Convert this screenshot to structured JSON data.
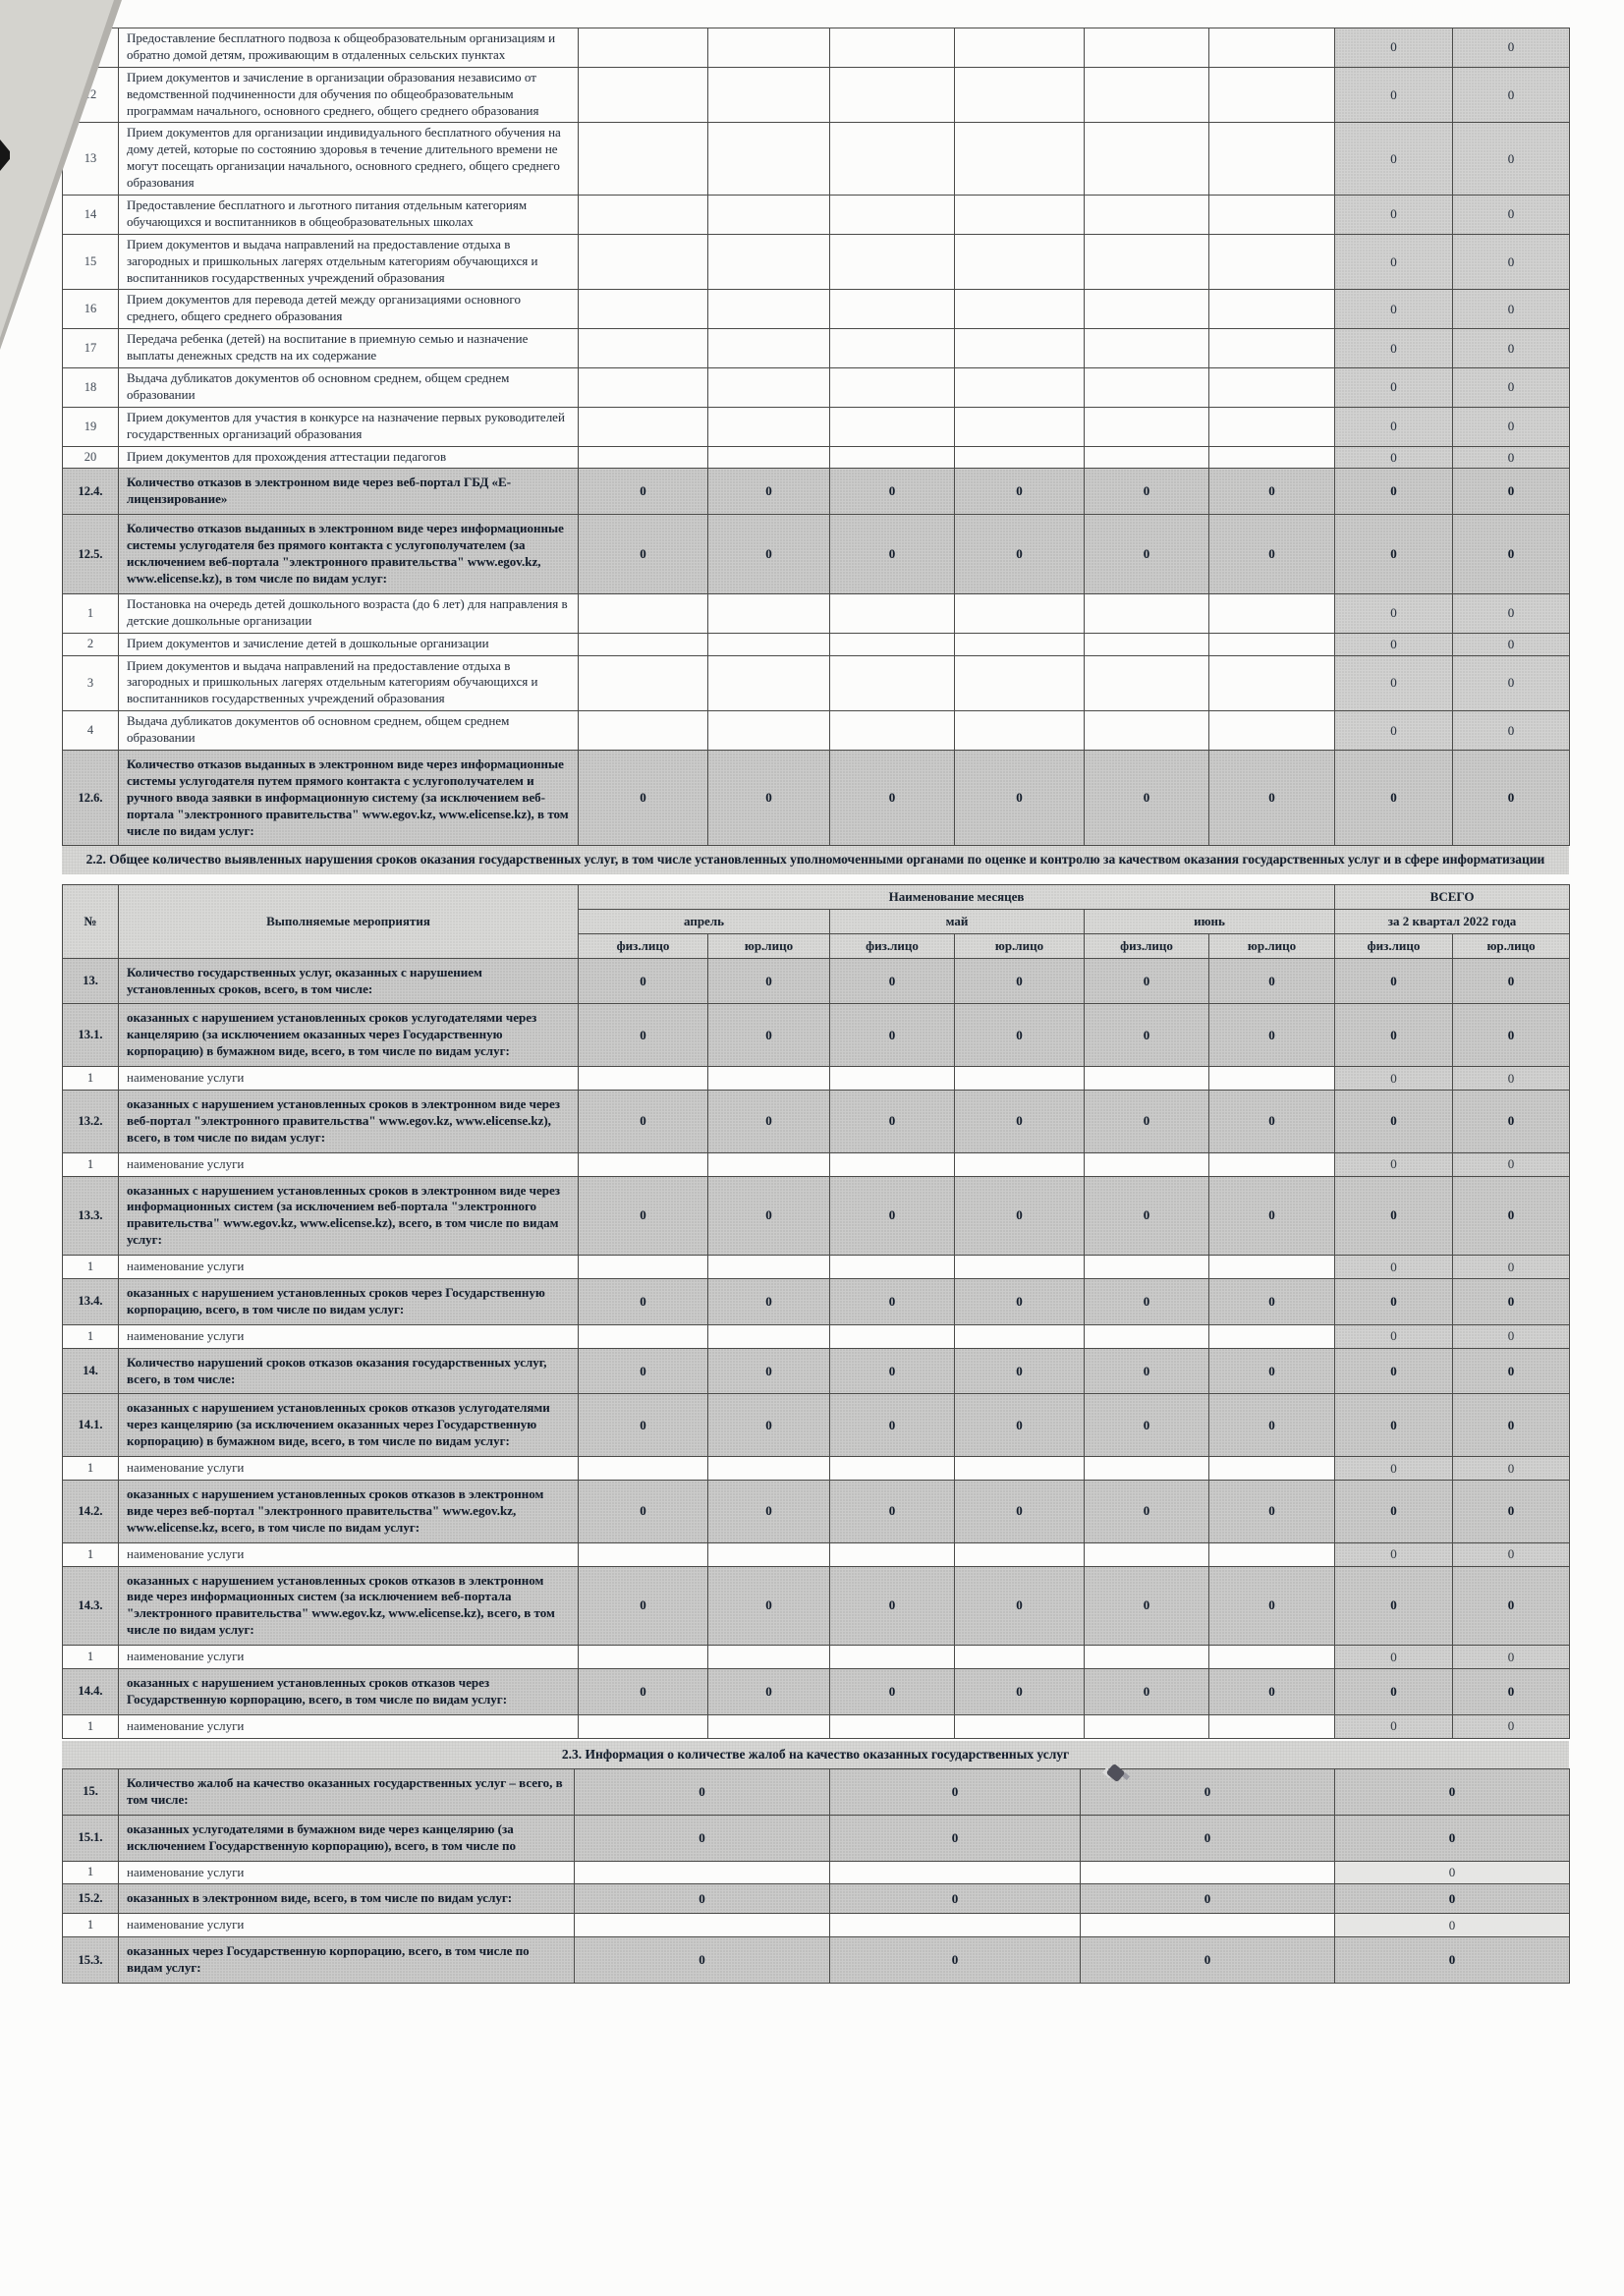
{
  "colors": {
    "shade_dark": "#cbcbca",
    "shade_light": "#e6e6e4",
    "paper": "#fcfcfb"
  },
  "document": {
    "section_2_2_title": "2.2. Общее количество выявленных нарушения сроков оказания государственных услуг, в том числе установленных уполномоченными органами по оценке и контролю за качеством оказания государственных услуг и в сфере информатизации",
    "section_2_3_title": "2.3. Информация о количестве жалоб на качество оказанных государственных услуг"
  },
  "services_table": {
    "rows": [
      {
        "num": "",
        "type": "normal",
        "text": "Предоставление бесплатного подвоза к общеобразовательным организациям и обратно домой детям, проживающим в отдаленных сельских пунктах",
        "values": [
          "",
          "",
          "",
          "",
          "",
          "",
          "0",
          "0"
        ]
      },
      {
        "num": "12",
        "type": "normal",
        "text": "Прием документов и зачисление в организации образования независимо от ведомственной подчиненности для обучения по общеобразовательным программам начального, основного среднего, общего среднего образования",
        "values": [
          "",
          "",
          "",
          "",
          "",
          "",
          "0",
          "0"
        ]
      },
      {
        "num": "13",
        "type": "normal",
        "text": "Прием документов для организации индивидуального бесплатного обучения на дому детей, которые по состоянию здоровья в течение длительного времени не могут посещать организации начального, основного среднего, общего среднего образования",
        "values": [
          "",
          "",
          "",
          "",
          "",
          "",
          "0",
          "0"
        ]
      },
      {
        "num": "14",
        "type": "normal",
        "text": "Предоставление бесплатного и льготного питания отдельным категориям обучающихся и воспитанников в общеобразовательных школах",
        "values": [
          "",
          "",
          "",
          "",
          "",
          "",
          "0",
          "0"
        ]
      },
      {
        "num": "15",
        "type": "normal",
        "text": "Прием документов и выдача направлений на  предоставление отдыха в загородных и пришкольных лагерях отдельным категориям обучающихся и воспитанников государственных учреждений образования",
        "values": [
          "",
          "",
          "",
          "",
          "",
          "",
          "0",
          "0"
        ]
      },
      {
        "num": "16",
        "type": "normal",
        "text": "Прием документов для перевода детей между организациями основного среднего, общего среднего образования",
        "values": [
          "",
          "",
          "",
          "",
          "",
          "",
          "0",
          "0"
        ]
      },
      {
        "num": "17",
        "type": "normal",
        "text": "Передача ребенка (детей) на воспитание в приемную семью и назначение выплаты денежных средств на их содержание",
        "values": [
          "",
          "",
          "",
          "",
          "",
          "",
          "0",
          "0"
        ]
      },
      {
        "num": "18",
        "type": "normal",
        "text": "Выдача дубликатов документов об основном среднем, общем среднем образовании",
        "values": [
          "",
          "",
          "",
          "",
          "",
          "",
          "0",
          "0"
        ]
      },
      {
        "num": "19",
        "type": "normal",
        "text": "Прием документов для участия в конкурсе на назначение первых руководителей государственных организаций образования",
        "values": [
          "",
          "",
          "",
          "",
          "",
          "",
          "0",
          "0"
        ]
      },
      {
        "num": "20",
        "type": "normal",
        "text": "Прием документов для прохождения аттестации педагогов",
        "values": [
          "",
          "",
          "",
          "",
          "",
          "",
          "0",
          "0"
        ]
      },
      {
        "num": "12.4.",
        "type": "bold",
        "text": "Количество отказов в электронном виде через веб-портал ГБД «Е-лицензирование»",
        "values": [
          "0",
          "0",
          "0",
          "0",
          "0",
          "0",
          "0",
          "0"
        ]
      },
      {
        "num": "12.5.",
        "type": "bold",
        "text": "Количество отказов выданных в электронном виде через информационные системы услугодателя без прямого контакта с услугополучателем (за исключением веб-портала \"электронного правительства\" www.egov.kz, www.elicense.kz), в том числе по видам услуг:",
        "values": [
          "0",
          "0",
          "0",
          "0",
          "0",
          "0",
          "0",
          "0"
        ]
      },
      {
        "num": "1",
        "type": "normal",
        "text": "Постановка на очередь детей дошкольного возраста (до 6 лет) для направления в детские дошкольные организации",
        "values": [
          "",
          "",
          "",
          "",
          "",
          "",
          "0",
          "0"
        ]
      },
      {
        "num": "2",
        "type": "normal",
        "text": "Прием документов и зачисление детей в дошкольные организации",
        "values": [
          "",
          "",
          "",
          "",
          "",
          "",
          "0",
          "0"
        ]
      },
      {
        "num": "3",
        "type": "normal",
        "text": "Прием документов и выдача направлений на  предоставление отдыха в загородных и пришкольных лагерях отдельным категориям обучающихся и воспитанников государственных учреждений образования",
        "values": [
          "",
          "",
          "",
          "",
          "",
          "",
          "0",
          "0"
        ]
      },
      {
        "num": "4",
        "type": "normal",
        "text": "Выдача дубликатов документов об основном среднем, общем среднем образовании",
        "values": [
          "",
          "",
          "",
          "",
          "",
          "",
          "0",
          "0"
        ]
      },
      {
        "num": "12.6.",
        "type": "bold",
        "text": "Количество отказов выданных в электронном виде через информационные системы услугодателя путем прямого контакта с услугополучателем и ручного ввода заявки в информационную систему (за исключением веб-портала \"электронного правительства\" www.egov.kz, www.elicense.kz), в том числе по видам услуг:",
        "values": [
          "0",
          "0",
          "0",
          "0",
          "0",
          "0",
          "0",
          "0"
        ]
      }
    ]
  },
  "violations_table": {
    "header": {
      "num": "№",
      "activity": "Выполняемые мероприятия",
      "months_group": "Наименование месяцев",
      "total_group": "ВСЕГО",
      "months": [
        "апрель",
        "май",
        "июнь"
      ],
      "total_period": "за 2 квартал 2022 года",
      "person_fiz": "физ.лицо",
      "person_jur": "юр.лицо"
    },
    "rows": [
      {
        "num": "13.",
        "type": "bold",
        "text": "Количество государственных услуг, оказанных с нарушением установленных сроков, всего, в том числе:",
        "values": [
          "0",
          "0",
          "0",
          "0",
          "0",
          "0",
          "0",
          "0"
        ]
      },
      {
        "num": "13.1.",
        "type": "bold",
        "text": "оказанных с нарушением установленных сроков услугодателями через канцелярию (за исключением оказанных через Государственную корпорацию) в бумажном виде, всего, в том числе по видам услуг:",
        "values": [
          "0",
          "0",
          "0",
          "0",
          "0",
          "0",
          "0",
          "0"
        ]
      },
      {
        "num": "1",
        "type": "name",
        "text": "наименование услуги",
        "values": [
          "",
          "",
          "",
          "",
          "",
          "",
          "0",
          "0"
        ]
      },
      {
        "num": "13.2.",
        "type": "bold",
        "text": "оказанных с нарушением установленных сроков в электронном виде через веб-портал \"электронного правительства\" www.egov.kz, www.elicense.kz), всего, в том числе по видам услуг:",
        "values": [
          "0",
          "0",
          "0",
          "0",
          "0",
          "0",
          "0",
          "0"
        ]
      },
      {
        "num": "1",
        "type": "name",
        "text": "наименование услуги",
        "values": [
          "",
          "",
          "",
          "",
          "",
          "",
          "0",
          "0"
        ]
      },
      {
        "num": "13.3.",
        "type": "bold",
        "text": "оказанных с нарушением установленных сроков в электронном виде через информационных систем (за исключением веб-портала \"электронного правительства\" www.egov.kz, www.elicense.kz), всего, в том числе по видам услуг:",
        "values": [
          "0",
          "0",
          "0",
          "0",
          "0",
          "0",
          "0",
          "0"
        ]
      },
      {
        "num": "1",
        "type": "name",
        "text": "наименование услуги",
        "values": [
          "",
          "",
          "",
          "",
          "",
          "",
          "0",
          "0"
        ]
      },
      {
        "num": "13.4.",
        "type": "bold",
        "text": "оказанных с нарушением установленных сроков через Государственную корпорацию, всего, в том числе по видам услуг:",
        "values": [
          "0",
          "0",
          "0",
          "0",
          "0",
          "0",
          "0",
          "0"
        ]
      },
      {
        "num": "1",
        "type": "name",
        "text": "наименование услуги",
        "values": [
          "",
          "",
          "",
          "",
          "",
          "",
          "0",
          "0"
        ]
      },
      {
        "num": "14.",
        "type": "bold",
        "text": "Количество нарушений сроков отказов оказания государственных услуг, всего, в том числе:",
        "values": [
          "0",
          "0",
          "0",
          "0",
          "0",
          "0",
          "0",
          "0"
        ]
      },
      {
        "num": "14.1.",
        "type": "bold",
        "text": "оказанных с нарушением установленных сроков отказов услугодателями через канцелярию (за исключением оказанных через Государственную корпорацию) в бумажном виде, всего, в том числе по видам услуг:",
        "values": [
          "0",
          "0",
          "0",
          "0",
          "0",
          "0",
          "0",
          "0"
        ]
      },
      {
        "num": "1",
        "type": "name",
        "text": "наименование услуги",
        "values": [
          "",
          "",
          "",
          "",
          "",
          "",
          "0",
          "0"
        ]
      },
      {
        "num": "14.2.",
        "type": "bold",
        "text": "оказанных с нарушением установленных сроков отказов в электронном виде через веб-портал \"электронного правительства\" www.egov.kz, www.elicense.kz, всего, в том числе по видам услуг:",
        "values": [
          "0",
          "0",
          "0",
          "0",
          "0",
          "0",
          "0",
          "0"
        ]
      },
      {
        "num": "1",
        "type": "name",
        "text": "наименование услуги",
        "values": [
          "",
          "",
          "",
          "",
          "",
          "",
          "0",
          "0"
        ]
      },
      {
        "num": "14.3.",
        "type": "bold",
        "text": "оказанных с нарушением установленных сроков отказов в электронном виде через информационных систем (за исключением веб-портала \"электронного правительства\" www.egov.kz, www.elicense.kz), всего, в том числе по видам услуг:",
        "values": [
          "0",
          "0",
          "0",
          "0",
          "0",
          "0",
          "0",
          "0"
        ]
      },
      {
        "num": "1",
        "type": "name",
        "text": "наименование услуги",
        "values": [
          "",
          "",
          "",
          "",
          "",
          "",
          "0",
          "0"
        ]
      },
      {
        "num": "14.4.",
        "type": "bold",
        "text": "оказанных с нарушением установленных сроков отказов через Государственную корпорацию, всего, в том числе по видам услуг:",
        "values": [
          "0",
          "0",
          "0",
          "0",
          "0",
          "0",
          "0",
          "0"
        ]
      },
      {
        "num": "1",
        "type": "name",
        "text": "наименование услуги",
        "values": [
          "",
          "",
          "",
          "",
          "",
          "",
          "0",
          "0"
        ]
      }
    ]
  },
  "complaints_table": {
    "rows": [
      {
        "num": "15.",
        "type": "bold",
        "text": "Количество жалоб на качество оказанных государственных услуг – всего, в том числе:",
        "values": [
          "0",
          "0",
          "0",
          "0"
        ]
      },
      {
        "num": "15.1.",
        "type": "bold",
        "text": "оказанных услугодателями в бумажном виде через канцелярию (за исключением Государственную корпорацию), всего, в том числе по",
        "values": [
          "0",
          "0",
          "0",
          "0"
        ]
      },
      {
        "num": "1",
        "type": "name",
        "text": "наименование услуги",
        "values": [
          "",
          "",
          "",
          "0"
        ]
      },
      {
        "num": "15.2.",
        "type": "bold",
        "text": "оказанных в электронном виде, всего, в том числе по видам услуг:",
        "values": [
          "0",
          "0",
          "0",
          "0"
        ]
      },
      {
        "num": "1",
        "type": "name",
        "text": "наименование услуги",
        "values": [
          "",
          "",
          "",
          "0"
        ]
      },
      {
        "num": "15.3.",
        "type": "bold",
        "text": "оказанных через Государственную корпорацию, всего, в том числе по видам услуг:",
        "values": [
          "0",
          "0",
          "0",
          "0"
        ]
      }
    ]
  }
}
